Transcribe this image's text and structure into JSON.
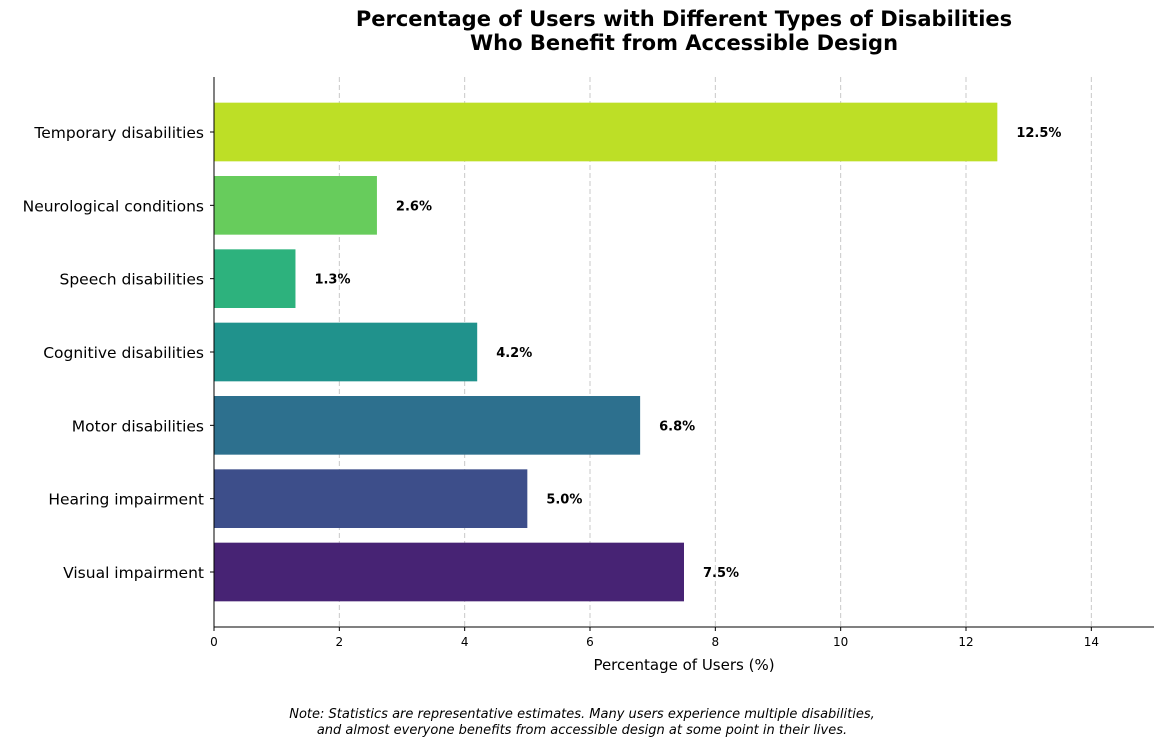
{
  "chart_data": {
    "type": "bar",
    "orientation": "horizontal",
    "title": "Percentage of Users with Different Types of Disabilities\nWho Benefit from Accessible Design",
    "xlabel": "Percentage of Users (%)",
    "ylabel": "",
    "xlim": [
      0,
      15
    ],
    "xticks": [
      0,
      2,
      4,
      6,
      8,
      10,
      12,
      14
    ],
    "grid": "x-dashed",
    "categories": [
      "Visual impairment",
      "Hearing impairment",
      "Motor disabilities",
      "Cognitive disabilities",
      "Speech disabilities",
      "Neurological conditions",
      "Temporary disabilities"
    ],
    "values": [
      7.5,
      5.0,
      6.8,
      4.2,
      1.3,
      2.6,
      12.5
    ],
    "data_labels": [
      "7.5%",
      "5.0%",
      "6.8%",
      "4.2%",
      "1.3%",
      "2.6%",
      "12.5%"
    ],
    "colors": [
      "#472374",
      "#3d4e8a",
      "#2d708e",
      "#20928c",
      "#2db27d",
      "#67cc5c",
      "#bddf26"
    ],
    "note": "Note: Statistics are representative estimates. Many users experience multiple disabilities,\nand almost everyone benefits from accessible design at some point in their lives."
  }
}
